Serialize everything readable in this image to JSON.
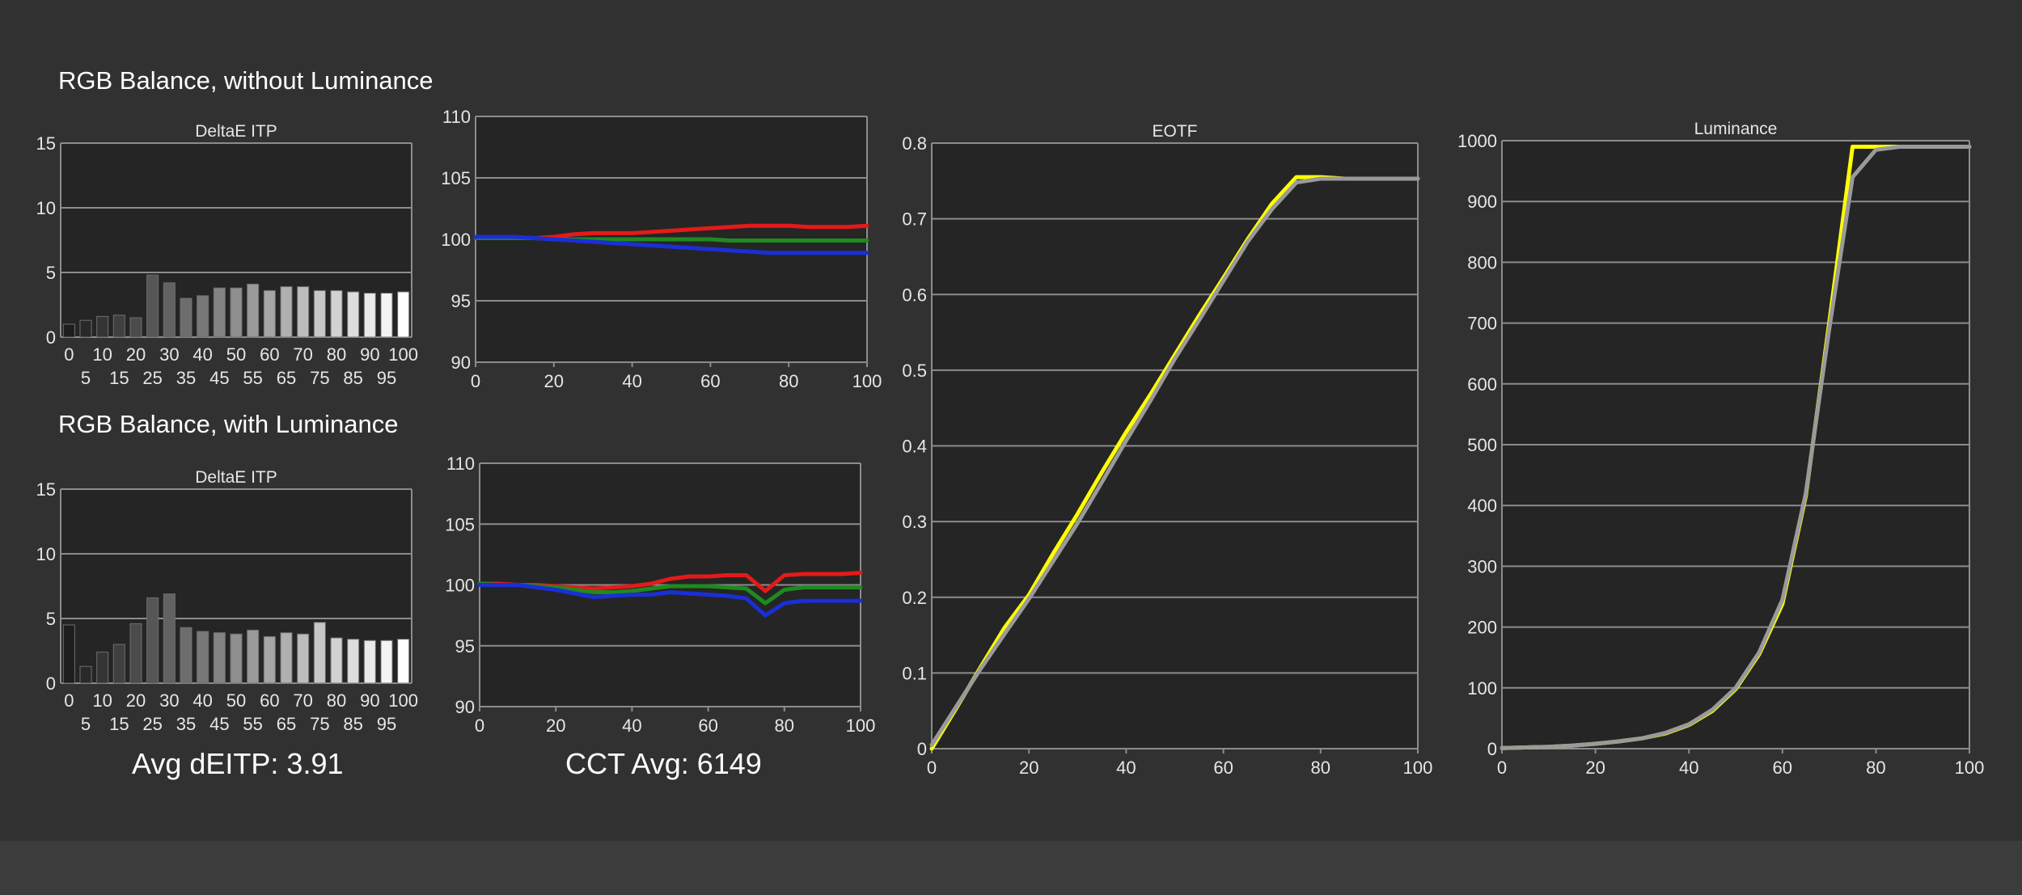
{
  "sections": {
    "top_title": "RGB Balance, without Luminance",
    "bottom_title": "RGB Balance, with Luminance"
  },
  "summary": {
    "avg_deitp": "Avg dEITP: 3.91",
    "cct_avg": "CCT Avg: 6149"
  },
  "colors": {
    "background": "#3c3c3c",
    "panel": "#313131",
    "plot_area": "#252525",
    "grid": "#8c8c8c",
    "text": "#e6e6e6",
    "red": "#e41a1a",
    "green": "#1f8a1f",
    "blue": "#1a2fd6",
    "yellow": "#ffff00",
    "reference_gray": "#9a9a9a"
  },
  "chart_data": [
    {
      "id": "deltae_top",
      "type": "bar",
      "title": "DeltaE ITP",
      "categories": [
        "0",
        "5",
        "10",
        "15",
        "20",
        "25",
        "30",
        "35",
        "40",
        "45",
        "50",
        "55",
        "60",
        "65",
        "70",
        "75",
        "80",
        "85",
        "90",
        "95",
        "100"
      ],
      "values": [
        1.0,
        1.3,
        1.6,
        1.7,
        1.5,
        4.8,
        4.2,
        3.0,
        3.2,
        3.8,
        3.8,
        4.1,
        3.6,
        3.9,
        3.9,
        3.6,
        3.6,
        3.5,
        3.4,
        3.4,
        3.5
      ],
      "ylim": [
        0,
        15
      ],
      "yticks": [
        0,
        5,
        10,
        15
      ],
      "xticks_upper": [
        "0",
        "10",
        "20",
        "30",
        "40",
        "50",
        "60",
        "70",
        "80",
        "90",
        "100"
      ],
      "xticks_lower": [
        "5",
        "15",
        "25",
        "35",
        "45",
        "55",
        "65",
        "75",
        "85",
        "95"
      ]
    },
    {
      "id": "rgb_top",
      "type": "line",
      "x": [
        0,
        5,
        10,
        15,
        20,
        25,
        30,
        35,
        40,
        45,
        50,
        55,
        60,
        65,
        70,
        75,
        80,
        85,
        90,
        95,
        100
      ],
      "series": [
        {
          "color": "#e41a1a",
          "values": [
            100.1,
            100.1,
            100.1,
            100.1,
            100.2,
            100.4,
            100.5,
            100.5,
            100.5,
            100.6,
            100.7,
            100.8,
            100.9,
            101.0,
            101.1,
            101.1,
            101.1,
            101.0,
            101.0,
            101.0,
            101.1
          ]
        },
        {
          "color": "#1f8a1f",
          "values": [
            100.1,
            100.1,
            100.1,
            100.1,
            100.0,
            100.0,
            100.0,
            100.0,
            100.0,
            100.0,
            100.0,
            100.0,
            100.0,
            99.9,
            99.9,
            99.9,
            99.9,
            99.9,
            99.9,
            99.9,
            99.9
          ]
        },
        {
          "color": "#1a2fd6",
          "values": [
            100.2,
            100.2,
            100.2,
            100.1,
            100.0,
            99.9,
            99.8,
            99.7,
            99.6,
            99.5,
            99.4,
            99.3,
            99.2,
            99.1,
            99.0,
            98.9,
            98.9,
            98.9,
            98.9,
            98.9,
            98.9
          ]
        }
      ],
      "xlim": [
        0,
        100
      ],
      "ylim": [
        90,
        110
      ],
      "xticks": [
        0,
        20,
        40,
        60,
        80,
        100
      ],
      "yticks": [
        90,
        95,
        100,
        105,
        110
      ]
    },
    {
      "id": "deltae_bottom",
      "type": "bar",
      "title": "DeltaE ITP",
      "categories": [
        "0",
        "5",
        "10",
        "15",
        "20",
        "25",
        "30",
        "35",
        "40",
        "45",
        "50",
        "55",
        "60",
        "65",
        "70",
        "75",
        "80",
        "85",
        "90",
        "95",
        "100"
      ],
      "values": [
        4.5,
        1.3,
        2.4,
        3.0,
        4.6,
        6.6,
        6.9,
        4.3,
        4.0,
        3.9,
        3.8,
        4.1,
        3.6,
        3.9,
        3.8,
        4.7,
        3.5,
        3.4,
        3.3,
        3.3,
        3.4
      ],
      "ylim": [
        0,
        15
      ],
      "yticks": [
        0,
        5,
        10,
        15
      ],
      "xticks_upper": [
        "0",
        "10",
        "20",
        "30",
        "40",
        "50",
        "60",
        "70",
        "80",
        "90",
        "100"
      ],
      "xticks_lower": [
        "5",
        "15",
        "25",
        "35",
        "45",
        "55",
        "65",
        "75",
        "85",
        "95"
      ]
    },
    {
      "id": "rgb_bottom",
      "type": "line",
      "x": [
        0,
        5,
        10,
        15,
        20,
        25,
        30,
        35,
        40,
        45,
        50,
        55,
        60,
        65,
        70,
        75,
        80,
        85,
        90,
        95,
        100
      ],
      "series": [
        {
          "color": "#e41a1a",
          "values": [
            100.1,
            100.1,
            100.0,
            100.0,
            99.9,
            99.8,
            99.7,
            99.8,
            99.9,
            100.1,
            100.5,
            100.7,
            100.7,
            100.8,
            100.8,
            99.5,
            100.8,
            100.9,
            100.9,
            100.9,
            101.0
          ]
        },
        {
          "color": "#1f8a1f",
          "values": [
            100.1,
            100.0,
            100.0,
            99.9,
            99.8,
            99.6,
            99.4,
            99.4,
            99.5,
            99.7,
            99.9,
            99.9,
            99.9,
            99.8,
            99.7,
            98.5,
            99.6,
            99.8,
            99.8,
            99.8,
            99.8
          ]
        },
        {
          "color": "#1a2fd6",
          "values": [
            100.0,
            100.0,
            100.0,
            99.8,
            99.6,
            99.3,
            99.0,
            99.1,
            99.2,
            99.2,
            99.4,
            99.3,
            99.2,
            99.1,
            98.9,
            97.5,
            98.5,
            98.7,
            98.7,
            98.7,
            98.7
          ]
        }
      ],
      "xlim": [
        0,
        100
      ],
      "ylim": [
        90,
        110
      ],
      "xticks": [
        0,
        20,
        40,
        60,
        80,
        100
      ],
      "yticks": [
        90,
        95,
        100,
        105,
        110
      ]
    },
    {
      "id": "eotf",
      "type": "line",
      "title": "EOTF",
      "x": [
        0,
        5,
        10,
        15,
        20,
        25,
        30,
        35,
        40,
        45,
        50,
        55,
        60,
        65,
        70,
        75,
        80,
        85,
        90,
        95,
        100
      ],
      "series": [
        {
          "color": "#ffff00",
          "values": [
            0.0,
            0.053,
            0.107,
            0.16,
            0.203,
            0.258,
            0.31,
            0.365,
            0.418,
            0.468,
            0.52,
            0.572,
            0.622,
            0.673,
            0.72,
            0.755,
            0.755,
            0.753,
            0.753,
            0.753,
            0.753
          ]
        },
        {
          "color": "#9a9a9a",
          "values": [
            0.005,
            0.055,
            0.105,
            0.152,
            0.198,
            0.248,
            0.298,
            0.352,
            0.407,
            0.46,
            0.515,
            0.566,
            0.618,
            0.67,
            0.713,
            0.748,
            0.753,
            0.753,
            0.753,
            0.753,
            0.753
          ]
        }
      ],
      "xlim": [
        0,
        100
      ],
      "ylim": [
        0,
        0.8
      ],
      "xticks": [
        0,
        20,
        40,
        60,
        80,
        100
      ],
      "yticks": [
        0,
        0.1,
        0.2,
        0.3,
        0.4,
        0.5,
        0.6,
        0.7,
        0.8
      ]
    },
    {
      "id": "luminance",
      "type": "line",
      "title": "Luminance",
      "x": [
        0,
        5,
        10,
        15,
        20,
        25,
        30,
        35,
        40,
        45,
        50,
        55,
        60,
        65,
        70,
        75,
        80,
        85,
        90,
        95,
        100
      ],
      "series": [
        {
          "color": "#ffff00",
          "values": [
            1,
            2,
            3,
            5,
            8,
            12,
            17,
            25,
            39,
            62,
            98,
            155,
            238,
            416,
            700,
            990,
            990,
            990,
            990,
            990,
            990
          ]
        },
        {
          "color": "#9a9a9a",
          "values": [
            1,
            2,
            3,
            5,
            8,
            12,
            17,
            26,
            40,
            64,
            100,
            158,
            245,
            420,
            690,
            940,
            985,
            990,
            990,
            990,
            990
          ]
        }
      ],
      "xlim": [
        0,
        100
      ],
      "ylim": [
        0,
        1000
      ],
      "xticks": [
        0,
        20,
        40,
        60,
        80,
        100
      ],
      "yticks": [
        0,
        100,
        200,
        300,
        400,
        500,
        600,
        700,
        800,
        900,
        1000
      ]
    }
  ]
}
